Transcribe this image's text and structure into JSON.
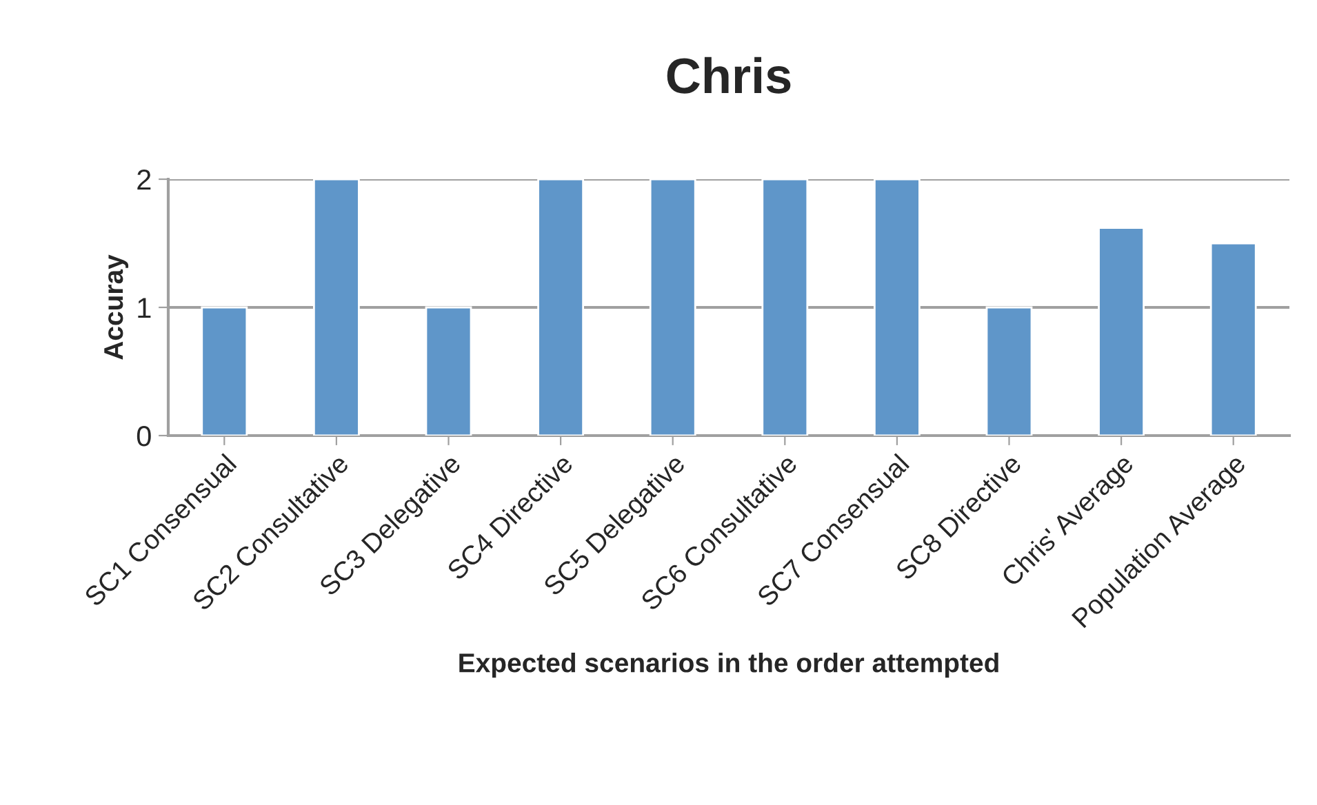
{
  "chart_data": {
    "type": "bar",
    "title": "Chris",
    "xlabel": "Expected scenarios in the order attempted",
    "ylabel": "Accuray",
    "categories": [
      "SC1 Consensual",
      "SC2 Consultative",
      "SC3 Delegative",
      "SC4 Directive",
      "SC5 Delegative",
      "SC6 Consultative",
      "SC7 Consensual",
      "SC8 Directive",
      "Chris' Average",
      "Population Average"
    ],
    "values": [
      1,
      2,
      1,
      2,
      2,
      2,
      2,
      1,
      1.62,
      1.5
    ],
    "color": "#5f96c9",
    "ylim": [
      0,
      2
    ],
    "yticks": [
      0,
      1,
      2
    ],
    "grid": "y"
  }
}
